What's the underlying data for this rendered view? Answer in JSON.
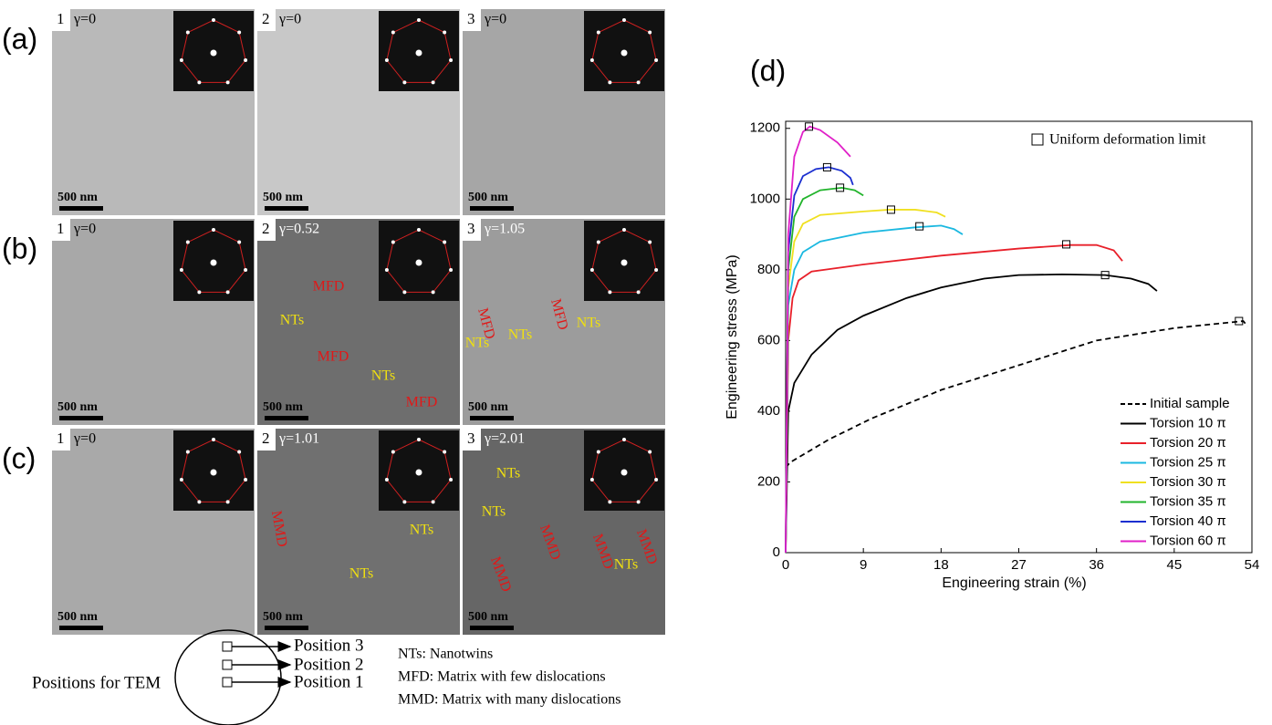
{
  "panels": [
    {
      "label": "(a)",
      "images": [
        {
          "number": "1",
          "gamma": "γ=0",
          "scale": "500 nm",
          "annotations": []
        },
        {
          "number": "2",
          "gamma": "γ=0",
          "scale": "500 nm",
          "annotations": []
        },
        {
          "number": "3",
          "gamma": "γ=0",
          "scale": "500 nm",
          "annotations": []
        }
      ]
    },
    {
      "label": "(b)",
      "images": [
        {
          "number": "1",
          "gamma": "γ=0",
          "scale": "500 nm",
          "annotations": []
        },
        {
          "number": "2",
          "gamma": "γ=0.52",
          "scale": "500 nm",
          "annotations": [
            {
              "text": "MFD",
              "color": "#e01818"
            },
            {
              "text": "NTs",
              "color": "#f0e010"
            },
            {
              "text": "MFD",
              "color": "#e01818"
            },
            {
              "text": "NTs",
              "color": "#f0e010"
            },
            {
              "text": "MFD",
              "color": "#e01818"
            }
          ]
        },
        {
          "number": "3",
          "gamma": "γ=1.05",
          "scale": "500 nm",
          "annotations": [
            {
              "text": "MFD",
              "color": "#e01818"
            },
            {
              "text": "NTs",
              "color": "#f0e010"
            },
            {
              "text": "NTs",
              "color": "#f0e010"
            },
            {
              "text": "MFD",
              "color": "#e01818"
            },
            {
              "text": "NTs",
              "color": "#f0e010"
            }
          ]
        }
      ]
    },
    {
      "label": "(c)",
      "images": [
        {
          "number": "1",
          "gamma": "γ=0",
          "scale": "500 nm",
          "annotations": []
        },
        {
          "number": "2",
          "gamma": "γ=1.01",
          "scale": "500 nm",
          "annotations": [
            {
              "text": "MMD",
              "color": "#e01818"
            },
            {
              "text": "NTs",
              "color": "#f0e010"
            },
            {
              "text": "NTs",
              "color": "#f0e010"
            }
          ]
        },
        {
          "number": "3",
          "gamma": "γ=2.01",
          "scale": "500 nm",
          "annotations": [
            {
              "text": "NTs",
              "color": "#f0e010"
            },
            {
              "text": "NTs",
              "color": "#f0e010"
            },
            {
              "text": "MMD",
              "color": "#e01818"
            },
            {
              "text": "MMD",
              "color": "#e01818"
            },
            {
              "text": "MMD",
              "color": "#e01818"
            },
            {
              "text": "NTs",
              "color": "#f0e010"
            },
            {
              "text": "MMD",
              "color": "#e01818"
            }
          ]
        }
      ]
    }
  ],
  "schematic": {
    "title": "Positions for TEM",
    "positions": [
      "Position 3",
      "Position 2",
      "Position 1"
    ],
    "notes": [
      "NTs: Nanotwins",
      "MFD: Matrix with few dislocations",
      "MMD: Matrix with many dislocations"
    ]
  },
  "chart_data": {
    "type": "line",
    "panel_label": "(d)",
    "x_label": "Engineering strain (%)",
    "y_label": "Engineering stress (MPa)",
    "xlim": [
      0,
      54
    ],
    "xticks": [
      0,
      9,
      18,
      27,
      36,
      45,
      54
    ],
    "ylim": [
      0,
      1220
    ],
    "yticks": [
      0,
      200,
      400,
      600,
      800,
      1000,
      1200
    ],
    "marker_legend": "Uniform deformation limit",
    "legend_position": "lower right",
    "series": [
      {
        "name": "Initial sample",
        "color": "#000000",
        "dashed": true,
        "x": [
          0,
          0.5,
          5,
          10,
          18,
          27,
          36,
          45,
          53,
          53.5
        ],
        "values": [
          240,
          255,
          320,
          380,
          460,
          530,
          600,
          635,
          655,
          640
        ],
        "limit_x": 52.5,
        "limit_y": 655
      },
      {
        "name": "Torsion 10 π",
        "color": "#000000",
        "x": [
          0,
          0.3,
          1,
          3,
          6,
          9,
          14,
          18,
          23,
          27,
          32,
          37,
          40,
          42,
          43
        ],
        "values": [
          0,
          400,
          480,
          560,
          630,
          670,
          720,
          750,
          775,
          785,
          787,
          785,
          775,
          760,
          740
        ],
        "limit_x": 37,
        "limit_y": 785
      },
      {
        "name": "Torsion 20 π",
        "color": "#e8202a",
        "x": [
          0,
          0.3,
          0.8,
          1.5,
          3,
          9,
          18,
          27,
          33,
          36,
          38,
          39
        ],
        "values": [
          0,
          600,
          720,
          770,
          795,
          815,
          840,
          860,
          870,
          870,
          855,
          825
        ],
        "limit_x": 32.5,
        "limit_y": 872
      },
      {
        "name": "Torsion 25 π",
        "color": "#1bb8e0",
        "x": [
          0,
          0.3,
          1,
          2,
          4,
          9,
          15,
          18,
          19.5,
          20.5
        ],
        "values": [
          0,
          700,
          800,
          850,
          880,
          905,
          920,
          925,
          915,
          900
        ],
        "limit_x": 15.5,
        "limit_y": 923
      },
      {
        "name": "Torsion 30 π",
        "color": "#f0e020",
        "x": [
          0,
          0.3,
          1,
          2,
          4,
          9,
          12,
          15,
          17.5,
          18.5
        ],
        "values": [
          0,
          750,
          880,
          930,
          955,
          965,
          970,
          970,
          962,
          950
        ],
        "limit_x": 12.2,
        "limit_y": 970
      },
      {
        "name": "Torsion 35 π",
        "color": "#22b42c",
        "x": [
          0,
          0.3,
          1,
          2,
          4,
          6.5,
          8,
          9
        ],
        "values": [
          0,
          800,
          950,
          1000,
          1025,
          1032,
          1025,
          1010
        ],
        "limit_x": 6.3,
        "limit_y": 1032
      },
      {
        "name": "Torsion 40 π",
        "color": "#1b2fd0",
        "x": [
          0,
          0.3,
          1,
          2,
          3.5,
          5,
          6.5,
          7.5,
          7.8
        ],
        "values": [
          0,
          850,
          1010,
          1065,
          1085,
          1090,
          1080,
          1060,
          1040
        ],
        "limit_x": 4.8,
        "limit_y": 1090
      },
      {
        "name": "Torsion 60 π",
        "color": "#e020c8",
        "x": [
          0,
          0.3,
          1,
          2,
          2.8,
          4,
          6,
          7.5
        ],
        "values": [
          0,
          900,
          1120,
          1190,
          1205,
          1195,
          1160,
          1120
        ],
        "limit_x": 2.7,
        "limit_y": 1205
      }
    ]
  }
}
